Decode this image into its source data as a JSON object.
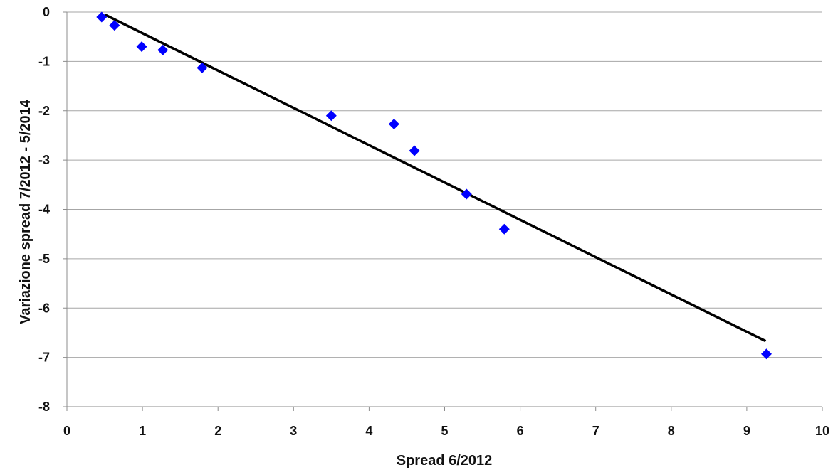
{
  "chart_data": {
    "type": "scatter",
    "title": "",
    "xlabel": "Spread 6/2012",
    "ylabel": "Variazione spread 7/2012 - 5/2014",
    "xlim": [
      0,
      10
    ],
    "ylim": [
      -8,
      0
    ],
    "x_ticks": [
      "0",
      "1",
      "2",
      "3",
      "4",
      "5",
      "6",
      "7",
      "8",
      "9",
      "10"
    ],
    "y_ticks": [
      "0",
      "-1",
      "-2",
      "-3",
      "-4",
      "-5",
      "-6",
      "-7",
      "-8"
    ],
    "grid": "horizontal",
    "marker": "diamond",
    "colors": {
      "points": "#0000ff",
      "trendline": "#000000",
      "grid": "#a6a6a6",
      "axis": "#8c8c8c"
    },
    "series": [
      {
        "x": [
          0.46,
          0.63,
          0.99,
          1.27,
          1.79,
          3.5,
          4.33,
          4.6,
          5.29,
          5.79,
          9.26
        ],
        "y": [
          -0.1,
          -0.27,
          -0.7,
          -0.77,
          -1.13,
          -2.1,
          -2.27,
          -2.81,
          -3.69,
          -4.4,
          -6.93
        ]
      }
    ],
    "trendline": {
      "x": [
        0.5,
        9.25
      ],
      "y": [
        -0.05,
        -6.67
      ]
    }
  }
}
